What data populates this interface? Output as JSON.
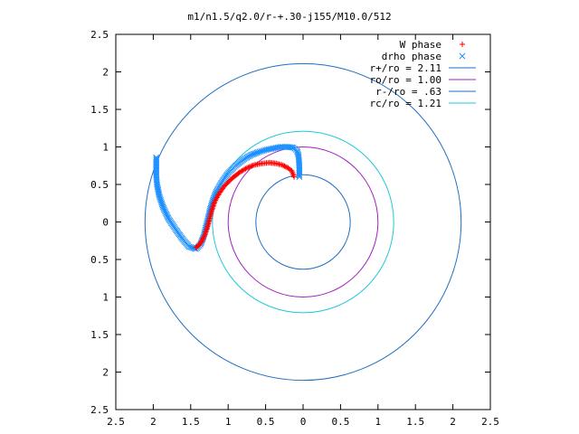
{
  "chart_data": {
    "type": "scatter",
    "title": "m1/n1.5/q2.0/r-+.30-j155/M10.0/512",
    "xlim": [
      -2.5,
      2.5
    ],
    "ylim": [
      -2.5,
      2.5
    ],
    "xticks": [
      -2.5,
      -2,
      -1.5,
      -1,
      -0.5,
      0,
      0.5,
      1,
      1.5,
      2,
      2.5
    ],
    "yticks": [
      -2.5,
      -2,
      -1.5,
      -1,
      -0.5,
      0,
      0.5,
      1,
      1.5,
      2,
      2.5
    ],
    "xtick_labels": [
      "2.5",
      "2",
      "1.5",
      "1",
      "0.5",
      "0",
      "0.5",
      "1",
      "1.5",
      "2",
      "2.5"
    ],
    "ytick_labels": [
      "2.5",
      "2",
      "1.5",
      "1",
      "0.5",
      "0",
      "0.5",
      "1",
      "1.5",
      "2",
      "2.5"
    ],
    "grid": false,
    "legend_position": "top-right",
    "series": [
      {
        "name": "W phase",
        "kind": "points",
        "marker": "+",
        "color": "#ff0000",
        "points": [
          [
            -0.12,
            0.6
          ],
          [
            -0.15,
            0.68
          ],
          [
            -0.2,
            0.72
          ],
          [
            -0.28,
            0.76
          ],
          [
            -0.36,
            0.78
          ],
          [
            -0.45,
            0.79
          ],
          [
            -0.55,
            0.78
          ],
          [
            -0.65,
            0.76
          ],
          [
            -0.75,
            0.72
          ],
          [
            -0.85,
            0.66
          ],
          [
            -0.95,
            0.58
          ],
          [
            -1.05,
            0.48
          ],
          [
            -1.12,
            0.38
          ],
          [
            -1.18,
            0.27
          ],
          [
            -1.22,
            0.15
          ],
          [
            -1.25,
            0.03
          ],
          [
            -1.28,
            -0.08
          ],
          [
            -1.31,
            -0.17
          ],
          [
            -1.35,
            -0.25
          ],
          [
            -1.39,
            -0.31
          ],
          [
            -1.43,
            -0.34
          ]
        ]
      },
      {
        "name": "drho phase",
        "kind": "points",
        "marker": "x",
        "color": "#1e90ff",
        "points": [
          [
            -0.05,
            0.6
          ],
          [
            -0.05,
            0.75
          ],
          [
            -0.06,
            0.88
          ],
          [
            -0.08,
            0.95
          ],
          [
            -0.13,
            0.99
          ],
          [
            -0.2,
            1.0
          ],
          [
            -0.3,
            1.0
          ],
          [
            -0.4,
            0.98
          ],
          [
            -0.5,
            0.96
          ],
          [
            -0.6,
            0.93
          ],
          [
            -0.7,
            0.89
          ],
          [
            -0.8,
            0.83
          ],
          [
            -0.9,
            0.75
          ],
          [
            -1.0,
            0.65
          ],
          [
            -1.08,
            0.54
          ],
          [
            -1.15,
            0.42
          ],
          [
            -1.2,
            0.3
          ],
          [
            -1.24,
            0.17
          ],
          [
            -1.27,
            0.04
          ],
          [
            -1.3,
            -0.08
          ],
          [
            -1.33,
            -0.2
          ],
          [
            -1.37,
            -0.3
          ],
          [
            -1.43,
            -0.36
          ],
          [
            -1.52,
            -0.33
          ],
          [
            -1.6,
            -0.24
          ],
          [
            -1.7,
            -0.1
          ],
          [
            -1.8,
            0.05
          ],
          [
            -1.87,
            0.2
          ],
          [
            -1.92,
            0.35
          ],
          [
            -1.95,
            0.5
          ],
          [
            -1.96,
            0.62
          ],
          [
            -1.96,
            0.75
          ],
          [
            -1.96,
            0.86
          ]
        ]
      },
      {
        "name": "r+/ro = 2.11",
        "kind": "circle",
        "radius": 2.11,
        "color": "#1f6fbf"
      },
      {
        "name": "ro/ro = 1.00",
        "kind": "circle",
        "radius": 1.0,
        "color": "#a020c0"
      },
      {
        "name": "r-/ro = .63",
        "kind": "circle",
        "radius": 0.63,
        "color": "#1f6fbf"
      },
      {
        "name": "rc/ro = 1.21",
        "kind": "circle",
        "radius": 1.21,
        "color": "#20c8d8"
      }
    ]
  }
}
